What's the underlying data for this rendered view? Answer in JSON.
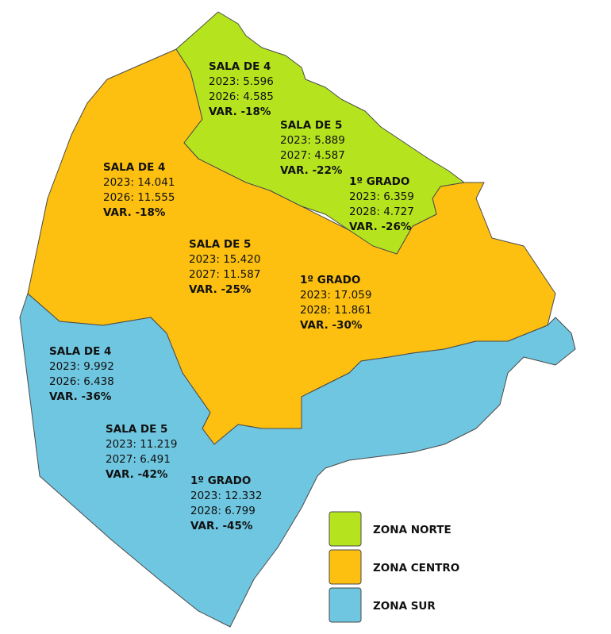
{
  "zones": [
    {
      "name": "ZONA NORTE",
      "color": "#b5e41f",
      "blocks": [
        {
          "title": "SALA DE 4",
          "lines": [
            "2023: 5.596",
            "2026: 4.585"
          ],
          "var": "VAR. -18%"
        },
        {
          "title": "SALA DE 5",
          "lines": [
            "2023: 5.889",
            "2027: 4.587"
          ],
          "var": "VAR. -22%"
        },
        {
          "title": "1º GRADO",
          "lines": [
            "2023: 6.359",
            "2028: 4.727"
          ],
          "var": "VAR. -26%"
        }
      ]
    },
    {
      "name": "ZONA CENTRO",
      "color": "#fdc010",
      "blocks": [
        {
          "title": "SALA DE 4",
          "lines": [
            "2023: 14.041",
            "2026: 11.555"
          ],
          "var": "VAR. -18%"
        },
        {
          "title": "SALA DE 5",
          "lines": [
            "2023: 15.420",
            "2027: 11.587"
          ],
          "var": "VAR. -25%"
        },
        {
          "title": "1º GRADO",
          "lines": [
            "2023: 17.059",
            "2028: 11.861"
          ],
          "var": "VAR. -30%"
        }
      ]
    },
    {
      "name": "ZONA SUR",
      "color": "#6fc6e0",
      "blocks": [
        {
          "title": "SALA DE 4",
          "lines": [
            "2023: 9.992",
            "2026: 6.438"
          ],
          "var": "VAR. -36%"
        },
        {
          "title": "SALA DE 5",
          "lines": [
            "2023: 11.219",
            "2027: 6.491"
          ],
          "var": "VAR. -42%"
        },
        {
          "title": "1º GRADO",
          "lines": [
            "2023: 12.332",
            "2028: 6.799"
          ],
          "var": "VAR. -45%"
        }
      ]
    }
  ]
}
